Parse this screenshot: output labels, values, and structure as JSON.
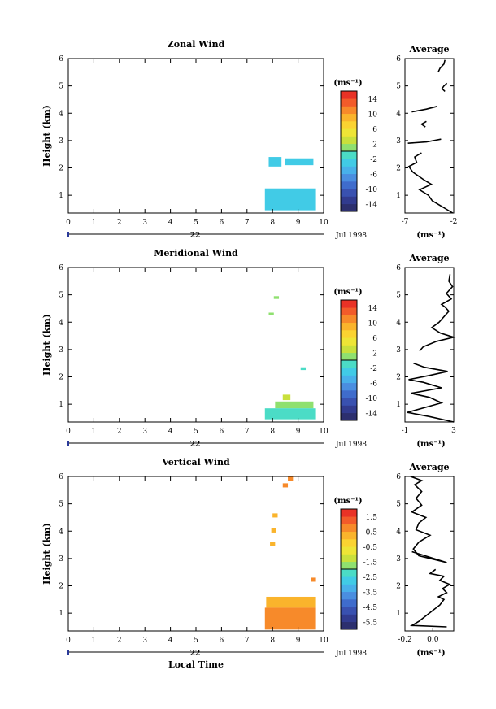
{
  "chart_data": [
    {
      "type": "heatmap",
      "title": "Zonal Wind",
      "ylabel": "Height (km)",
      "xlabel": "",
      "xlim": [
        0,
        10
      ],
      "ylim": [
        0.35,
        6
      ],
      "x_ticks": [
        "0",
        "1",
        "2",
        "3",
        "4",
        "5",
        "6",
        "7",
        "8",
        "9",
        "10"
      ],
      "y_ticks": [
        "1",
        "2",
        "3",
        "4",
        "5",
        "6"
      ],
      "date_label": "22",
      "month_label": "Jul 1998",
      "colorbar": {
        "unit": "(ms⁻¹)",
        "ticks": [
          "14",
          "10",
          "6",
          "2",
          "-2",
          "-6",
          "-10",
          "-14"
        ],
        "min": -16,
        "max": 16,
        "colors": [
          "#2c2f6e",
          "#313b8f",
          "#3951b0",
          "#3f6ccc",
          "#4a8ee0",
          "#48b0ea",
          "#41cbe6",
          "#4bdcc6",
          "#8fe06f",
          "#c9e03c",
          "#eee536",
          "#fbd331",
          "#fab42c",
          "#f78a2a",
          "#f25b2a",
          "#e93226"
        ]
      },
      "patches": [
        {
          "x": [
            7.85,
            8.35
          ],
          "y": [
            2.05,
            2.4
          ],
          "value": -3
        },
        {
          "x": [
            8.5,
            9.6
          ],
          "y": [
            2.1,
            2.35
          ],
          "value": -3
        },
        {
          "x": [
            7.7,
            9.7
          ],
          "y": [
            0.45,
            1.25
          ],
          "value": -4
        }
      ],
      "avg_panel": {
        "title": "Average",
        "xlim": [
          -7,
          -2
        ],
        "x_ticks": [
          "-7",
          "-2"
        ],
        "y_ticks": [
          "1",
          "2",
          "3",
          "4",
          "5",
          "6"
        ],
        "xlabel": "(ms⁻¹)",
        "segments": [
          [
            [
              -2.1,
              0.35
            ],
            [
              -2.8,
              0.5
            ],
            [
              -4.2,
              0.8
            ],
            [
              -4.6,
              1.0
            ],
            [
              -5.5,
              1.2
            ],
            [
              -4.3,
              1.4
            ],
            [
              -5.0,
              1.55
            ],
            [
              -5.6,
              1.7
            ],
            [
              -6.2,
              1.85
            ],
            [
              -6.6,
              2.05
            ],
            [
              -5.8,
              2.2
            ],
            [
              -6.0,
              2.4
            ],
            [
              -5.3,
              2.55
            ]
          ],
          [
            [
              -6.7,
              2.9
            ],
            [
              -4.8,
              2.95
            ],
            [
              -3.3,
              3.05
            ]
          ],
          [
            [
              -4.9,
              3.5
            ],
            [
              -5.3,
              3.6
            ],
            [
              -4.8,
              3.7
            ]
          ],
          [
            [
              -6.3,
              4.05
            ],
            [
              -4.8,
              4.15
            ],
            [
              -3.7,
              4.25
            ]
          ],
          [
            [
              -2.9,
              4.8
            ],
            [
              -3.2,
              4.9
            ],
            [
              -3.0,
              5.0
            ],
            [
              -2.7,
              5.1
            ]
          ],
          [
            [
              -3.6,
              5.5
            ],
            [
              -3.4,
              5.65
            ],
            [
              -3.0,
              5.8
            ],
            [
              -2.9,
              5.95
            ]
          ]
        ]
      }
    },
    {
      "type": "heatmap",
      "title": "Meridional Wind",
      "ylabel": "Height (km)",
      "xlabel": "",
      "xlim": [
        0,
        10
      ],
      "ylim": [
        0.35,
        6
      ],
      "x_ticks": [
        "0",
        "1",
        "2",
        "3",
        "4",
        "5",
        "6",
        "7",
        "8",
        "9",
        "10"
      ],
      "y_ticks": [
        "1",
        "2",
        "3",
        "4",
        "5",
        "6"
      ],
      "date_label": "22",
      "month_label": "Jul 1998",
      "colorbar": {
        "unit": "(ms⁻¹)",
        "ticks": [
          "14",
          "10",
          "6",
          "2",
          "-2",
          "-6",
          "-10",
          "-14"
        ],
        "min": -16,
        "max": 16,
        "colors": [
          "#2c2f6e",
          "#313b8f",
          "#3951b0",
          "#3f6ccc",
          "#4a8ee0",
          "#48b0ea",
          "#41cbe6",
          "#4bdcc6",
          "#8fe06f",
          "#c9e03c",
          "#eee536",
          "#fbd331",
          "#fab42c",
          "#f78a2a",
          "#f25b2a",
          "#e93226"
        ]
      },
      "patches": [
        {
          "x": [
            8.05,
            8.25
          ],
          "y": [
            4.85,
            4.95
          ],
          "value": 1
        },
        {
          "x": [
            7.85,
            8.05
          ],
          "y": [
            4.25,
            4.35
          ],
          "value": 1
        },
        {
          "x": [
            9.1,
            9.3
          ],
          "y": [
            2.25,
            2.35
          ],
          "value": -1
        },
        {
          "x": [
            8.4,
            8.7
          ],
          "y": [
            1.15,
            1.35
          ],
          "value": 3
        },
        {
          "x": [
            8.1,
            9.6
          ],
          "y": [
            0.85,
            1.1
          ],
          "value": 1
        },
        {
          "x": [
            7.7,
            9.7
          ],
          "y": [
            0.45,
            0.85
          ],
          "value": -1
        }
      ],
      "avg_panel": {
        "title": "Average",
        "xlim": [
          -1,
          3
        ],
        "x_ticks": [
          "-1",
          "3"
        ],
        "y_ticks": [
          "1",
          "2",
          "3",
          "4",
          "5",
          "6"
        ],
        "xlabel": "(ms⁻¹)",
        "segments": [
          [
            [
              3.2,
              0.35
            ],
            [
              1.0,
              0.55
            ],
            [
              -0.8,
              0.7
            ],
            [
              0.8,
              0.9
            ],
            [
              2.0,
              1.05
            ],
            [
              1.0,
              1.25
            ],
            [
              -0.5,
              1.4
            ],
            [
              2.0,
              1.6
            ],
            [
              0.5,
              1.8
            ],
            [
              -0.7,
              1.9
            ],
            [
              1.0,
              2.05
            ],
            [
              2.5,
              2.2
            ],
            [
              0.6,
              2.35
            ],
            [
              -0.3,
              2.5
            ]
          ],
          [
            [
              0.2,
              2.95
            ],
            [
              0.5,
              3.1
            ],
            [
              1.6,
              3.3
            ],
            [
              3.2,
              3.45
            ],
            [
              1.9,
              3.6
            ],
            [
              1.2,
              3.8
            ],
            [
              1.8,
              4.0
            ],
            [
              2.2,
              4.2
            ],
            [
              2.6,
              4.4
            ],
            [
              2.3,
              4.55
            ],
            [
              2.0,
              4.65
            ],
            [
              2.8,
              4.85
            ],
            [
              2.4,
              5.05
            ],
            [
              2.9,
              5.3
            ],
            [
              2.6,
              5.5
            ],
            [
              2.7,
              5.75
            ]
          ]
        ]
      }
    },
    {
      "type": "heatmap",
      "title": "Vertical Wind",
      "ylabel": "Height (km)",
      "xlabel": "Local Time",
      "xlim": [
        0,
        10
      ],
      "ylim": [
        0.35,
        6
      ],
      "x_ticks": [
        "0",
        "1",
        "2",
        "3",
        "4",
        "5",
        "6",
        "7",
        "8",
        "9",
        "10"
      ],
      "y_ticks": [
        "1",
        "2",
        "3",
        "4",
        "5",
        "6"
      ],
      "date_label": "22",
      "month_label": "Jul 1998",
      "colorbar": {
        "unit": "(ms⁻¹)",
        "ticks": [
          "1.5",
          "0.5",
          "-0.5",
          "-1.5",
          "-2.5",
          "-3.5",
          "-4.5",
          "-5.5"
        ],
        "min": -6,
        "max": 2,
        "colors": [
          "#2c2f6e",
          "#313b8f",
          "#3951b0",
          "#3f6ccc",
          "#4a8ee0",
          "#48b0ea",
          "#41cbe6",
          "#4bdcc6",
          "#8fe06f",
          "#c9e03c",
          "#eee536",
          "#fbd331",
          "#fab42c",
          "#f78a2a",
          "#f25b2a",
          "#e93226"
        ]
      },
      "patches": [
        {
          "x": [
            8.6,
            8.8
          ],
          "y": [
            5.85,
            6.0
          ],
          "value": 0.6
        },
        {
          "x": [
            8.4,
            8.6
          ],
          "y": [
            5.6,
            5.75
          ],
          "value": 0.6
        },
        {
          "x": [
            8.0,
            8.2
          ],
          "y": [
            4.5,
            4.65
          ],
          "value": 0.4
        },
        {
          "x": [
            7.95,
            8.15
          ],
          "y": [
            3.95,
            4.1
          ],
          "value": 0.4
        },
        {
          "x": [
            7.9,
            8.1
          ],
          "y": [
            3.45,
            3.6
          ],
          "value": 0.4
        },
        {
          "x": [
            9.5,
            9.7
          ],
          "y": [
            2.15,
            2.3
          ],
          "value": 0.6
        },
        {
          "x": [
            7.75,
            9.7
          ],
          "y": [
            1.2,
            1.6
          ],
          "value": 0.4
        },
        {
          "x": [
            7.7,
            9.7
          ],
          "y": [
            0.4,
            1.2
          ],
          "value": 0.5
        }
      ],
      "avg_panel": {
        "title": "Average",
        "xlim": [
          -0.2,
          0.15
        ],
        "x_ticks": [
          "-0.2",
          "0.0"
        ],
        "y_ticks": [
          "1",
          "2",
          "3",
          "4",
          "5",
          "6"
        ],
        "xlabel": "(ms⁻¹)",
        "segments": [
          [
            [
              0.1,
              0.5
            ],
            [
              -0.15,
              0.55
            ],
            [
              -0.1,
              0.7
            ],
            [
              -0.05,
              0.9
            ],
            [
              0.0,
              1.1
            ],
            [
              0.05,
              1.3
            ],
            [
              0.08,
              1.5
            ],
            [
              0.04,
              1.6
            ],
            [
              0.1,
              1.75
            ],
            [
              0.07,
              1.9
            ],
            [
              0.12,
              2.05
            ],
            [
              0.05,
              2.2
            ],
            [
              0.08,
              2.35
            ],
            [
              -0.02,
              2.45
            ],
            [
              0.02,
              2.6
            ]
          ],
          [
            [
              -0.15,
              3.25
            ],
            [
              0.1,
              2.85
            ],
            [
              -0.1,
              3.1
            ],
            [
              -0.14,
              3.35
            ],
            [
              -0.1,
              3.6
            ],
            [
              -0.02,
              3.85
            ],
            [
              -0.12,
              4.05
            ],
            [
              -0.1,
              4.3
            ],
            [
              -0.05,
              4.5
            ],
            [
              -0.15,
              4.7
            ],
            [
              -0.08,
              4.95
            ],
            [
              -0.12,
              5.2
            ],
            [
              -0.08,
              5.45
            ],
            [
              -0.13,
              5.7
            ],
            [
              -0.08,
              5.85
            ],
            [
              -0.16,
              6.0
            ]
          ]
        ]
      }
    }
  ]
}
